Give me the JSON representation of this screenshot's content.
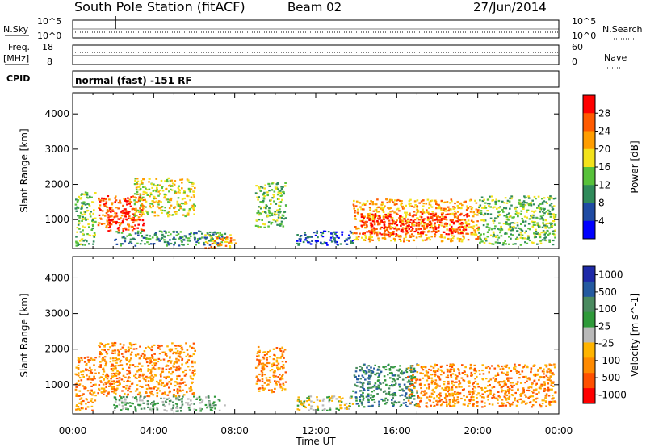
{
  "header": {
    "station": "South Pole Station (fitACF)",
    "beam": "Beam 02",
    "date": "27/Jun/2014",
    "cpid_text": "normal (fast) -151 RF"
  },
  "left_labels": {
    "nsky": "N.Sky",
    "freq": "Freq.",
    "freq_unit": "[MHz]",
    "cpid": "CPID",
    "nsky_ticks": [
      "10^5",
      "10^0"
    ],
    "freq_ticks": [
      "18",
      "8"
    ]
  },
  "right_labels": {
    "nsearch": "N.Search",
    "nave": "Nave",
    "nsearch_ticks": [
      "10^5",
      "10^0"
    ],
    "nave_ticks": [
      "60",
      "0"
    ]
  },
  "colors": {
    "power": [
      "#0000ff",
      "#1f4ba3",
      "#2f8a5a",
      "#57c13a",
      "#f3e21b",
      "#ff9d00",
      "#ff5a00",
      "#ff0000"
    ],
    "velocity": [
      "#ff0000",
      "#ff5000",
      "#ff8a00",
      "#ffb400",
      "#b9b9b9",
      "#2f9a3a",
      "#4a8a5f",
      "#245aa0",
      "#1e2aa8"
    ]
  },
  "chart_data": [
    {
      "type": "heatmap",
      "name": "power",
      "xlabel": "Time UT",
      "ylabel": "Slant Range [km]",
      "xlim": [
        0,
        24
      ],
      "ylim": [
        180,
        4600
      ],
      "xticks": [
        "00:00",
        "04:00",
        "08:00",
        "12:00",
        "16:00",
        "20:00",
        "00:00"
      ],
      "yticks": [
        1000,
        2000,
        3000,
        4000
      ],
      "colorbar": {
        "label": "Power [dB]",
        "ticks": [
          "28",
          "24",
          "20",
          "16",
          "12",
          "8",
          "4"
        ]
      },
      "regions": [
        {
          "t0": 0.1,
          "t1": 1.1,
          "r0": 280,
          "r1": 1800,
          "level": 3
        },
        {
          "t0": 1.2,
          "t1": 3.5,
          "r0": 700,
          "r1": 1700,
          "level": 6
        },
        {
          "t0": 1.6,
          "t1": 2.8,
          "r0": 900,
          "r1": 1300,
          "level": 7
        },
        {
          "t0": 3.0,
          "t1": 6.0,
          "r0": 1100,
          "r1": 2200,
          "level": 4
        },
        {
          "t0": 2.0,
          "t1": 7.5,
          "r0": 280,
          "r1": 700,
          "level": 2
        },
        {
          "t0": 6.5,
          "t1": 8.0,
          "r0": 200,
          "r1": 600,
          "level": 5
        },
        {
          "t0": 9.0,
          "t1": 10.5,
          "r0": 800,
          "r1": 2100,
          "level": 3
        },
        {
          "t0": 11.0,
          "t1": 13.8,
          "r0": 300,
          "r1": 700,
          "level": 1
        },
        {
          "t0": 13.8,
          "t1": 20.0,
          "r0": 400,
          "r1": 1600,
          "level": 5
        },
        {
          "t0": 14.2,
          "t1": 19.5,
          "r0": 600,
          "r1": 1200,
          "level": 7
        },
        {
          "t0": 20.0,
          "t1": 23.8,
          "r0": 300,
          "r1": 1700,
          "level": 3
        }
      ]
    },
    {
      "type": "heatmap",
      "name": "velocity",
      "xlabel": "Time UT",
      "ylabel": "Slant Range [km]",
      "xlim": [
        0,
        24
      ],
      "ylim": [
        180,
        4600
      ],
      "xticks": [
        "00:00",
        "04:00",
        "08:00",
        "12:00",
        "16:00",
        "20:00",
        "00:00"
      ],
      "yticks": [
        1000,
        2000,
        3000,
        4000
      ],
      "colorbar": {
        "label": "Velocity [m s^-1]",
        "ticks": [
          "1000",
          "500",
          "100",
          "25",
          "-25",
          "-100",
          "-500",
          "-1000"
        ]
      },
      "regions": [
        {
          "t0": 0.1,
          "t1": 1.1,
          "r0": 280,
          "r1": 1800,
          "level": 2
        },
        {
          "t0": 1.2,
          "t1": 6.0,
          "r0": 700,
          "r1": 2200,
          "level": 2
        },
        {
          "t0": 2.0,
          "t1": 7.5,
          "r0": 280,
          "r1": 700,
          "level": 5
        },
        {
          "t0": 9.0,
          "t1": 10.5,
          "r0": 800,
          "r1": 2100,
          "level": 2
        },
        {
          "t0": 11.0,
          "t1": 13.8,
          "r0": 300,
          "r1": 700,
          "level": 4
        },
        {
          "t0": 13.8,
          "t1": 17.0,
          "r0": 400,
          "r1": 1600,
          "level": 6
        },
        {
          "t0": 16.5,
          "t1": 23.8,
          "r0": 400,
          "r1": 1600,
          "level": 2
        }
      ]
    }
  ]
}
